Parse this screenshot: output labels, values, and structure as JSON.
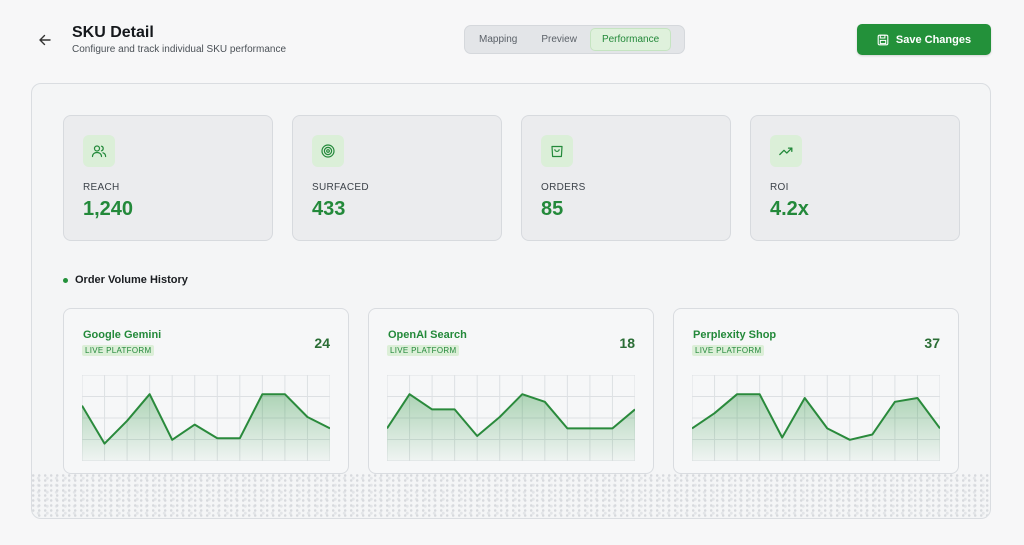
{
  "header": {
    "title": "SKU Detail",
    "subtitle": "Configure and track individual SKU performance",
    "tabs": [
      {
        "label": "Mapping",
        "active": false
      },
      {
        "label": "Preview",
        "active": false
      },
      {
        "label": "Performance",
        "active": true
      }
    ],
    "save_label": "Save Changes"
  },
  "metrics": [
    {
      "icon": "users-icon",
      "label": "REACH",
      "value": "1,240"
    },
    {
      "icon": "target-icon",
      "label": "SURFACED",
      "value": "433"
    },
    {
      "icon": "shopping-bag-icon",
      "label": "ORDERS",
      "value": "85"
    },
    {
      "icon": "trending-up-icon",
      "label": "ROI",
      "value": "4.2x"
    }
  ],
  "section": {
    "title": "Order Volume History"
  },
  "platforms": [
    {
      "name": "Google Gemini",
      "badge": "LIVE PLATFORM",
      "count": "24",
      "series": [
        6.5,
        1.5,
        4.5,
        8,
        2,
        4,
        2.2,
        2.2,
        8,
        8,
        5,
        3.5
      ]
    },
    {
      "name": "OpenAI Search",
      "badge": "LIVE PLATFORM",
      "count": "18",
      "series": [
        3.5,
        8,
        6,
        6,
        2.5,
        5,
        8,
        7,
        3.5,
        3.5,
        3.5,
        6
      ]
    },
    {
      "name": "Perplexity Shop",
      "badge": "LIVE PLATFORM",
      "count": "37",
      "series": [
        3.5,
        5.5,
        8,
        8,
        2.3,
        7.5,
        3.5,
        2,
        2.7,
        7,
        7.5,
        3.5
      ]
    }
  ],
  "colors": {
    "accent": "#23913a",
    "accent_text": "#23893a",
    "badge_bg": "#dcefd8"
  }
}
